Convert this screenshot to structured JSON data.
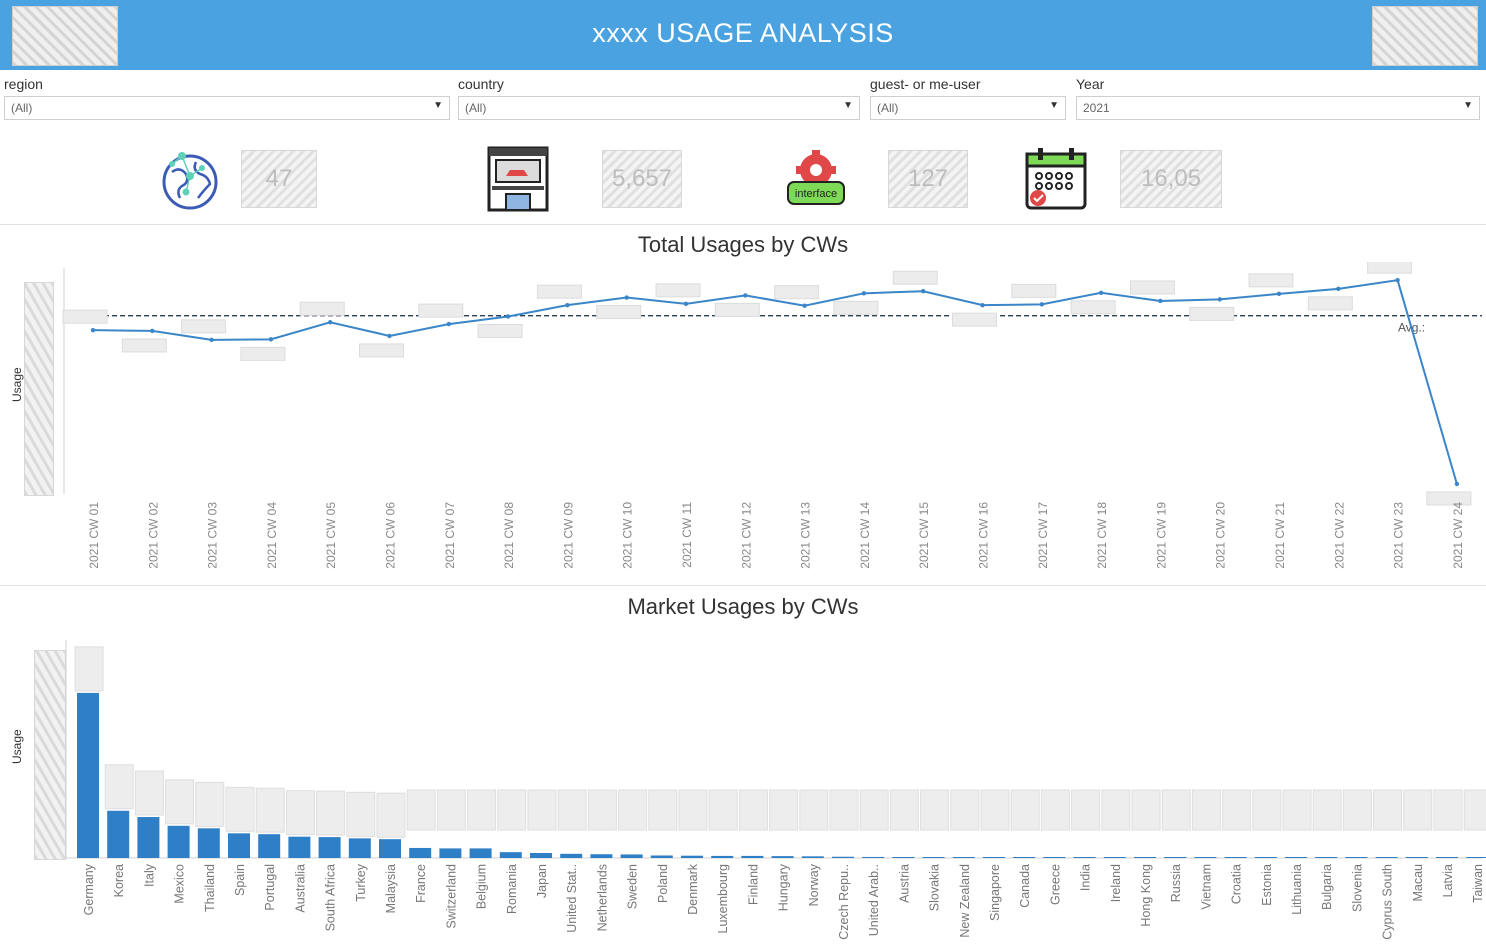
{
  "header": {
    "title": "xxxx USAGE ANALYSIS"
  },
  "filters": [
    {
      "label": "region",
      "value": "(All)"
    },
    {
      "label": "country",
      "value": "(All)"
    },
    {
      "label": "guest- or me-user",
      "value": "(All)"
    },
    {
      "label": "Year",
      "value": "2021"
    }
  ],
  "kpis": [
    {
      "icon": "globe-icon",
      "value": "47"
    },
    {
      "icon": "store-icon",
      "value": "5,657"
    },
    {
      "icon": "interface-gear-icon",
      "value": "127",
      "icon_text": "interface"
    },
    {
      "icon": "calendar-icon",
      "value": "16,05"
    }
  ],
  "colors": {
    "header": "#4aa3e0",
    "series": "#3a86c8",
    "bar": "#2f7fc7"
  },
  "chart_data": [
    {
      "type": "line",
      "title": "Total Usages by CWs",
      "ylabel": "Usage",
      "reference_line": "Avg.",
      "x": [
        "2021 CW 01",
        "2021 CW 02",
        "2021 CW 03",
        "2021 CW 04",
        "2021 CW 05",
        "2021 CW 06",
        "2021 CW 07",
        "2021 CW 08",
        "2021 CW 09",
        "2021 CW 10",
        "2021 CW 11",
        "2021 CW 12",
        "2021 CW 13",
        "2021 CW 14",
        "2021 CW 15",
        "2021 CW 16",
        "2021 CW 17",
        "2021 CW 18",
        "2021 CW 19",
        "2021 CW 20",
        "2021 CW 21",
        "2021 CW 22",
        "2021 CW 23",
        "2021 CW 24"
      ],
      "values": [
        615,
        612,
        578,
        580,
        645,
        593,
        638,
        667,
        710,
        739,
        715,
        747,
        708,
        755,
        763,
        710,
        713,
        757,
        726,
        732,
        753,
        772,
        805,
        30
      ],
      "avg": 670
    },
    {
      "type": "bar",
      "title": "Market Usages by CWs",
      "ylabel": "Usage",
      "categories": [
        "Germany",
        "Korea",
        "Italy",
        "Mexico",
        "Thailand",
        "Spain",
        "Portugal",
        "Australia",
        "South Africa",
        "Turkey",
        "Malaysia",
        "France",
        "Switzerland",
        "Belgium",
        "Romania",
        "Japan",
        "United Stat..",
        "Netherlands",
        "Sweden",
        "Poland",
        "Denmark",
        "Luxembourg",
        "Finland",
        "Hungary",
        "Norway",
        "Czech Repu..",
        "United Arab..",
        "Austria",
        "Slovakia",
        "New Zealand",
        "Singapore",
        "Canada",
        "Greece",
        "India",
        "Ireland",
        "Hong Kong",
        "Russia",
        "Vietnam",
        "Croatia",
        "Estonia",
        "Lithuania",
        "Bulgaria",
        "Slovenia",
        "Cyprus South",
        "Macau",
        "Latvia",
        "Taiwan"
      ],
      "values": [
        3950,
        1130,
        980,
        770,
        710,
        590,
        570,
        510,
        500,
        470,
        450,
        240,
        230,
        230,
        140,
        120,
        100,
        90,
        85,
        60,
        55,
        50,
        50,
        45,
        40,
        30,
        25,
        20,
        18,
        16,
        12,
        11,
        10,
        9,
        8,
        7,
        6,
        6,
        5,
        5,
        4,
        4,
        3,
        3,
        2,
        2,
        1
      ]
    }
  ]
}
